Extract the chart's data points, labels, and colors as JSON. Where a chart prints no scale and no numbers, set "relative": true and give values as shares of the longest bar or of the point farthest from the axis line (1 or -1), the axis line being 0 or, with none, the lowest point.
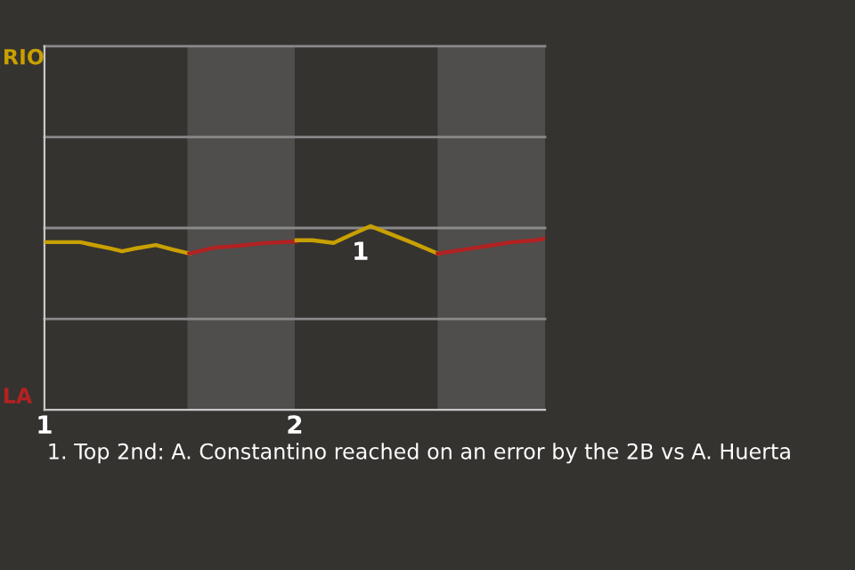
{
  "chart_data": {
    "type": "line",
    "relative": true,
    "xlim": [
      1,
      3
    ],
    "xticks": [
      1,
      2
    ],
    "marker": "none",
    "line_style": "solid",
    "ref_lines": [
      {
        "axis": "y",
        "value": 0.495,
        "color": "#8a8a8a"
      },
      {
        "axis": "y",
        "value": 0.99,
        "color": "#8a8a8a"
      },
      {
        "axis": "y",
        "value": 1.485,
        "color": "#8a8a8a"
      },
      {
        "axis": "y",
        "value": 1.98,
        "color": "#8a8a8a"
      }
    ],
    "bands": [
      {
        "axis": "x",
        "from": 1.571,
        "to": 2,
        "color": "#4f4e4c"
      },
      {
        "axis": "x",
        "from": 2.571,
        "to": 3,
        "color": "#4f4e4c"
      }
    ],
    "series": [
      {
        "color": "#c8a000",
        "x": [
          1.0,
          1.143,
          1.19,
          1.262,
          1.31,
          1.357,
          1.445,
          1.512,
          1.579
        ],
        "values": [
          0.913,
          0.913,
          0.899,
          0.879,
          0.863,
          0.877,
          0.897,
          0.873,
          0.851
        ]
      },
      {
        "color": "#b22222",
        "x": [
          1.579,
          1.679,
          1.774,
          1.869,
          1.952,
          2.007
        ],
        "values": [
          0.851,
          0.883,
          0.893,
          0.907,
          0.913,
          0.917
        ]
      },
      {
        "color": "#c8a000",
        "x": [
          2.007,
          2.071,
          2.155,
          2.226,
          2.302,
          2.381,
          2.464,
          2.571
        ],
        "values": [
          0.923,
          0.923,
          0.909,
          0.954,
          1,
          0.958,
          0.913,
          0.851
        ]
      },
      {
        "color": "#b22222",
        "x": [
          2.571,
          2.679,
          2.774,
          2.869,
          2.964,
          3.0
        ],
        "values": [
          0.851,
          0.873,
          0.893,
          0.913,
          0.923,
          0.933
        ]
      }
    ],
    "annotations": [
      "RIO",
      "LA",
      {
        "text": "1",
        "x": 2.302,
        "y": 1
      },
      "1. Top 2nd: A. Constantino reached on an error by the 2B vs A. Huerta"
    ]
  }
}
